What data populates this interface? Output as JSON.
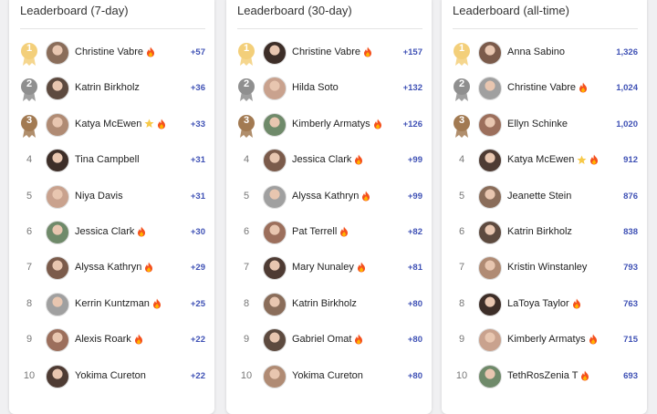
{
  "panels": [
    {
      "title": "Leaderboard (7-day)",
      "rows": [
        {
          "rank": "1",
          "name": "Christine Vabre",
          "fire": true,
          "points": "+57"
        },
        {
          "rank": "2",
          "name": "Katrin Birkholz",
          "points": "+36"
        },
        {
          "rank": "3",
          "name": "Katya McEwen",
          "star": true,
          "fire": true,
          "points": "+33"
        },
        {
          "rank": "4",
          "name": "Tina Campbell",
          "points": "+31"
        },
        {
          "rank": "5",
          "name": "Niya Davis",
          "points": "+31"
        },
        {
          "rank": "6",
          "name": "Jessica Clark",
          "fire": true,
          "points": "+30"
        },
        {
          "rank": "7",
          "name": "Alyssa Kathryn",
          "fire": true,
          "points": "+29"
        },
        {
          "rank": "8",
          "name": "Kerrin Kuntzman",
          "fire": true,
          "points": "+25"
        },
        {
          "rank": "9",
          "name": "Alexis Roark",
          "fire": true,
          "points": "+22"
        },
        {
          "rank": "10",
          "name": "Yokima Cureton",
          "points": "+22"
        }
      ]
    },
    {
      "title": "Leaderboard (30-day)",
      "rows": [
        {
          "rank": "1",
          "name": "Christine Vabre",
          "fire": true,
          "points": "+157"
        },
        {
          "rank": "2",
          "name": "Hilda Soto",
          "points": "+132"
        },
        {
          "rank": "3",
          "name": "Kimberly Armatys",
          "fire": true,
          "points": "+126"
        },
        {
          "rank": "4",
          "name": "Jessica Clark",
          "fire": true,
          "points": "+99"
        },
        {
          "rank": "5",
          "name": "Alyssa Kathryn",
          "fire": true,
          "points": "+99"
        },
        {
          "rank": "6",
          "name": "Pat Terrell",
          "fire": true,
          "points": "+82"
        },
        {
          "rank": "7",
          "name": "Mary Nunaley",
          "fire": true,
          "points": "+81"
        },
        {
          "rank": "8",
          "name": "Katrin Birkholz",
          "points": "+80"
        },
        {
          "rank": "9",
          "name": "Gabriel Omat",
          "fire": true,
          "points": "+80"
        },
        {
          "rank": "10",
          "name": "Yokima Cureton",
          "points": "+80"
        }
      ]
    },
    {
      "title": "Leaderboard (all-time)",
      "rows": [
        {
          "rank": "1",
          "name": "Anna Sabino",
          "points": "1,326"
        },
        {
          "rank": "2",
          "name": "Christine Vabre",
          "fire": true,
          "points": "1,024"
        },
        {
          "rank": "3",
          "name": "Ellyn Schinke",
          "points": "1,020"
        },
        {
          "rank": "4",
          "name": "Katya McEwen",
          "star": true,
          "fire": true,
          "points": "912"
        },
        {
          "rank": "5",
          "name": "Jeanette Stein",
          "points": "876"
        },
        {
          "rank": "6",
          "name": "Katrin Birkholz",
          "points": "838"
        },
        {
          "rank": "7",
          "name": "Kristin Winstanley",
          "points": "793"
        },
        {
          "rank": "8",
          "name": "LaToya Taylor",
          "fire": true,
          "points": "763"
        },
        {
          "rank": "9",
          "name": "Kimberly Armatys",
          "fire": true,
          "points": "715"
        },
        {
          "rank": "10",
          "name": "TethRosZenia T",
          "fire": true,
          "points": "693"
        }
      ]
    }
  ]
}
